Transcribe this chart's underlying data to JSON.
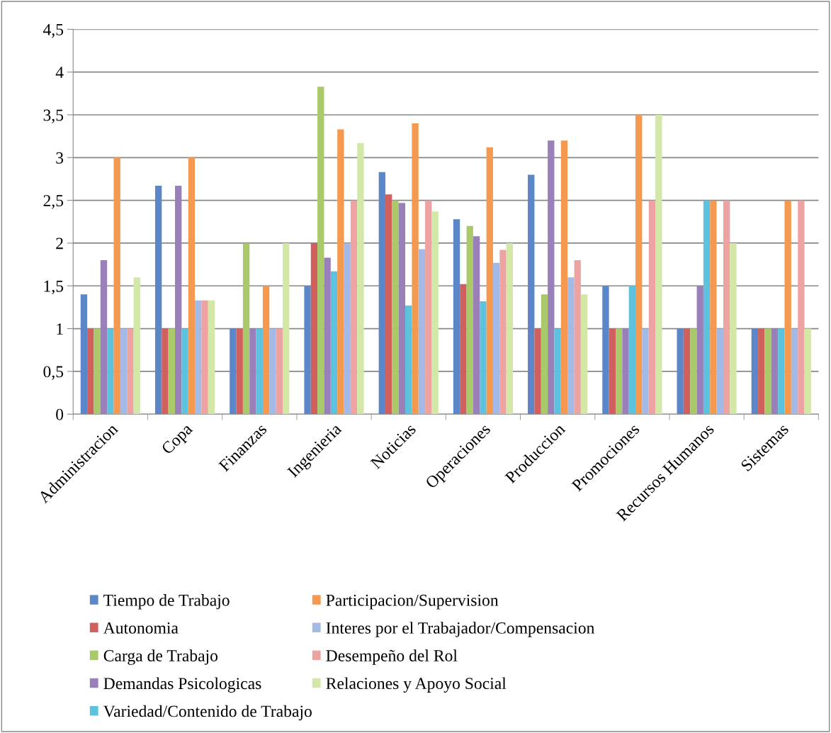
{
  "chart_data": {
    "type": "bar",
    "categories": [
      "Administracion",
      "Copa",
      "Finanzas",
      "Ingenieria",
      "Noticias",
      "Operaciones",
      "Produccion",
      "Promociones",
      "Recursos Humanos",
      "Sistemas"
    ],
    "series": [
      {
        "name": "Tiempo de Trabajo",
        "color": "#5b87c9",
        "values": [
          1.4,
          2.67,
          1,
          1.5,
          2.83,
          2.28,
          2.8,
          1.5,
          1,
          1
        ]
      },
      {
        "name": "Autonomia",
        "color": "#d0605d",
        "values": [
          1,
          1,
          1,
          2,
          2.57,
          1.52,
          1,
          1,
          1,
          1
        ]
      },
      {
        "name": "Carga de Trabajo",
        "color": "#a9c96a",
        "values": [
          1,
          1,
          2,
          3.83,
          2.5,
          2.2,
          1.4,
          1,
          1,
          1
        ]
      },
      {
        "name": "Demandas Psicologicas",
        "color": "#9a80b8",
        "values": [
          1.8,
          2.67,
          1,
          1.83,
          2.47,
          2.08,
          3.2,
          1,
          1.5,
          1
        ]
      },
      {
        "name": "Variedad/Contenido de Trabajo",
        "color": "#5dc2dd",
        "values": [
          1,
          1,
          1,
          1.67,
          1.27,
          1.32,
          1,
          1.5,
          2.5,
          1
        ]
      },
      {
        "name": "Participacion/Supervision",
        "color": "#f4994f",
        "values": [
          3,
          3,
          1.5,
          3.33,
          3.4,
          3.12,
          3.2,
          3.5,
          2.5,
          2.5
        ]
      },
      {
        "name": "Interes por el Trabajador/Compensacion",
        "color": "#a3b9e6",
        "values": [
          1,
          1.33,
          1,
          2,
          1.93,
          1.77,
          1.6,
          1,
          1,
          1
        ]
      },
      {
        "name": "Desempeño del Rol",
        "color": "#eea3a3",
        "values": [
          1,
          1.33,
          1,
          2.5,
          2.5,
          1.92,
          1.8,
          2.5,
          2.5,
          2.5
        ]
      },
      {
        "name": "Relaciones y Apoyo Social",
        "color": "#d3e8a6",
        "values": [
          1.6,
          1.33,
          2,
          3.17,
          2.37,
          2,
          1.4,
          3.5,
          2,
          1
        ]
      }
    ],
    "ylim": [
      0,
      4.5
    ],
    "yticks": [
      0,
      {
        "value": 0.5,
        "label": "0,5"
      },
      1,
      {
        "value": 1.5,
        "label": "1,5"
      },
      2,
      {
        "value": 2.5,
        "label": "2,5"
      },
      3,
      {
        "value": 3.5,
        "label": "3,5"
      },
      4,
      {
        "value": 4.5,
        "label": "4,5"
      }
    ],
    "grid": "y",
    "legend": "bottom"
  }
}
